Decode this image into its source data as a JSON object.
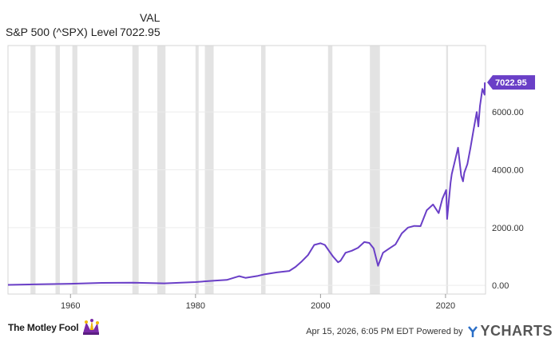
{
  "header": {
    "val_label": "VAL",
    "series_name": "S&P 500 (^SPX) Level",
    "series_value": "7022.95"
  },
  "chart_data": {
    "type": "line",
    "series": [
      {
        "name": "S&P 500 (^SPX) Level",
        "color": "#6a3fc7",
        "x": [
          1950,
          1955,
          1960,
          1965,
          1970,
          1975,
          1980,
          1983,
          1985,
          1987,
          1988,
          1990,
          1991,
          1993,
          1995,
          1996,
          1997,
          1998,
          1999,
          2000,
          2000.7,
          2001.5,
          2002,
          2002.8,
          2003.2,
          2004,
          2005,
          2006,
          2007,
          2007.8,
          2008.5,
          2009.2,
          2010,
          2011,
          2012,
          2013,
          2014,
          2015,
          2016,
          2017,
          2018,
          2018.9,
          2019.5,
          2020.1,
          2020.25,
          2020.8,
          2021,
          2021.5,
          2022,
          2022.5,
          2022.8,
          2023,
          2023.5,
          2024,
          2024.5,
          2025,
          2025.25,
          2025.5,
          2025.9,
          2026.25,
          2026.29
        ],
        "values": [
          17,
          40,
          58,
          88,
          92,
          70,
          114,
          165,
          190,
          320,
          260,
          330,
          380,
          450,
          500,
          640,
          830,
          1050,
          1400,
          1460,
          1400,
          1150,
          1000,
          800,
          850,
          1130,
          1200,
          1300,
          1500,
          1470,
          1280,
          680,
          1130,
          1280,
          1420,
          1800,
          2000,
          2060,
          2050,
          2600,
          2800,
          2500,
          3000,
          3300,
          2300,
          3550,
          3850,
          4300,
          4766,
          3800,
          3600,
          3900,
          4200,
          4770,
          5400,
          6000,
          5500,
          6200,
          6800,
          6600,
          7022.95
        ]
      }
    ],
    "recessions": [
      [
        1953.6,
        1954.4
      ],
      [
        1957.6,
        1958.3
      ],
      [
        1960.3,
        1961.1
      ],
      [
        1969.9,
        1970.9
      ],
      [
        1973.9,
        1975.2
      ],
      [
        1980.0,
        1980.5
      ],
      [
        1981.5,
        1982.9
      ],
      [
        1990.5,
        1991.2
      ],
      [
        2001.2,
        2001.9
      ],
      [
        2007.9,
        2009.5
      ],
      [
        2020.1,
        2020.4
      ]
    ],
    "xlim": [
      1950,
      2026.4
    ],
    "ylim": [
      -300,
      8300
    ],
    "x_ticks": [
      1960,
      1980,
      2000,
      2020
    ],
    "y_ticks": [
      0,
      2000,
      4000,
      6000
    ],
    "y_tick_labels": [
      "0.00",
      "2000.00",
      "4000.00",
      "6000.00"
    ],
    "end_label": "7022.95",
    "grid": "horizontal",
    "legend": "top-left"
  },
  "footer": {
    "brand": "The Motley Fool",
    "timestamp": "Apr 15, 2026, 6:05 PM EDT",
    "powered_by": "Powered by",
    "ycharts": "YCHARTS"
  },
  "colors": {
    "line": "#6a3fc7",
    "recession": "#e3e3e3",
    "plot_border": "#d6d6d6",
    "grid": "#ececec"
  }
}
